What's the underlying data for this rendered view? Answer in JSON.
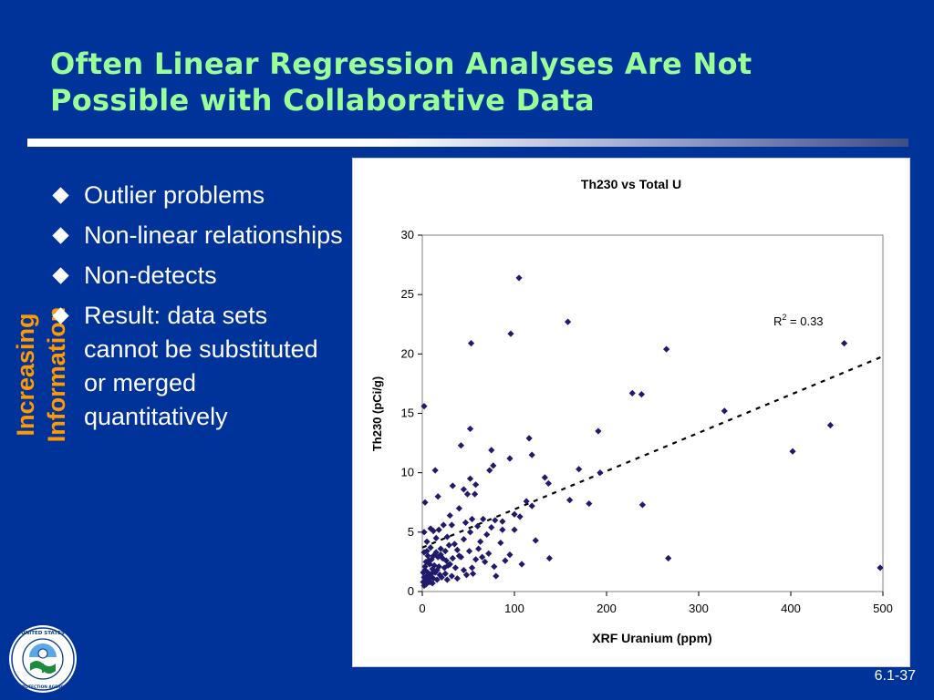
{
  "slide": {
    "title_line1": "Often Linear Regression Analyses Are Not",
    "title_line2": "Possible with Collaborative Data",
    "side_label": "Increasing Information",
    "bullets": [
      "Outlier problems",
      "Non-linear relationships",
      "Non-detects",
      "Result:  data sets cannot be substituted or merged quantitatively"
    ],
    "page_number": "6.1-37",
    "logo_text": "UNITED STATES ENVIRONMENTAL PROTECTION AGENCY"
  },
  "colors": {
    "background": "#003399",
    "title": "#99ff99",
    "side_label": "#ff9900",
    "marker": "#1f1a6b"
  },
  "chart_data": {
    "type": "scatter",
    "title": "Th230 vs Total U",
    "xlabel": "XRF Uranium (ppm)",
    "ylabel": "Th230 (pCi/g)",
    "xlim": [
      0,
      500
    ],
    "ylim": [
      0,
      30
    ],
    "xticks": [
      "0",
      "100",
      "200",
      "300",
      "400",
      "500"
    ],
    "yticks": [
      "0",
      "5",
      "10",
      "15",
      "20",
      "25",
      "30"
    ],
    "grid": false,
    "legend": "none",
    "annotation": {
      "label": "R",
      "superscript": "2",
      "text": " = 0.33"
    },
    "trendline": {
      "style": "dashed",
      "x": [
        0,
        500
      ],
      "y": [
        3.7,
        19.8
      ]
    },
    "points": [
      [
        105,
        26.4
      ],
      [
        158,
        22.7
      ],
      [
        96,
        21.7
      ],
      [
        53,
        20.9
      ],
      [
        265,
        20.4
      ],
      [
        458,
        20.9
      ],
      [
        228,
        16.7
      ],
      [
        238,
        16.6
      ],
      [
        2,
        15.6
      ],
      [
        328,
        15.2
      ],
      [
        52,
        13.7
      ],
      [
        443,
        14.0
      ],
      [
        191,
        13.5
      ],
      [
        116,
        12.9
      ],
      [
        42,
        12.3
      ],
      [
        75,
        11.9
      ],
      [
        119,
        11.5
      ],
      [
        402,
        11.8
      ],
      [
        95,
        11.2
      ],
      [
        77,
        10.6
      ],
      [
        73,
        10.2
      ],
      [
        170,
        10.3
      ],
      [
        193,
        10.0
      ],
      [
        14,
        10.2
      ],
      [
        133,
        9.6
      ],
      [
        52,
        9.5
      ],
      [
        58,
        9.0
      ],
      [
        45,
        8.6
      ],
      [
        33,
        8.9
      ],
      [
        137,
        9.1
      ],
      [
        17,
        8.0
      ],
      [
        49,
        8.2
      ],
      [
        57,
        8.2
      ],
      [
        160,
        7.7
      ],
      [
        181,
        7.4
      ],
      [
        239,
        7.3
      ],
      [
        3,
        7.5
      ],
      [
        113,
        7.6
      ],
      [
        106,
        6.3
      ],
      [
        119,
        7.2
      ],
      [
        40,
        7.0
      ],
      [
        100,
        6.5
      ],
      [
        30,
        6.4
      ],
      [
        66,
        6.1
      ],
      [
        54,
        6.1
      ],
      [
        79,
        6.0
      ],
      [
        87,
        5.9
      ],
      [
        9,
        5.3
      ],
      [
        2,
        5.0
      ],
      [
        12,
        5.1
      ],
      [
        18,
        5.2
      ],
      [
        23,
        5.6
      ],
      [
        32,
        5.6
      ],
      [
        47,
        5.8
      ],
      [
        75,
        5.4
      ],
      [
        87,
        5.2
      ],
      [
        52,
        5.0
      ],
      [
        15,
        4.5
      ],
      [
        27,
        4.6
      ],
      [
        45,
        4.4
      ],
      [
        63,
        4.2
      ],
      [
        5,
        4.2
      ],
      [
        9,
        3.7
      ],
      [
        20,
        3.6
      ],
      [
        29,
        3.9
      ],
      [
        38,
        3.5
      ],
      [
        51,
        3.4
      ],
      [
        72,
        3.2
      ],
      [
        95,
        3.1
      ],
      [
        2,
        3.3
      ],
      [
        6,
        3.0
      ],
      [
        12,
        3.0
      ],
      [
        17,
        2.9
      ],
      [
        22,
        2.8
      ],
      [
        26,
        2.6
      ],
      [
        33,
        2.8
      ],
      [
        42,
        2.9
      ],
      [
        58,
        2.7
      ],
      [
        68,
        2.5
      ],
      [
        138,
        2.8
      ],
      [
        267,
        2.8
      ],
      [
        497,
        2.0
      ],
      [
        4,
        2.5
      ],
      [
        8,
        2.3
      ],
      [
        13,
        2.2
      ],
      [
        18,
        2.1
      ],
      [
        24,
        2.0
      ],
      [
        30,
        2.3
      ],
      [
        36,
        2.0
      ],
      [
        45,
        1.8
      ],
      [
        54,
        2.0
      ],
      [
        78,
        2.1
      ],
      [
        108,
        2.3
      ],
      [
        3,
        1.8
      ],
      [
        6,
        1.6
      ],
      [
        10,
        1.5
      ],
      [
        14,
        1.6
      ],
      [
        19,
        1.4
      ],
      [
        25,
        1.5
      ],
      [
        32,
        1.3
      ],
      [
        48,
        1.4
      ],
      [
        80,
        1.3
      ],
      [
        2,
        1.2
      ],
      [
        4,
        1.1
      ],
      [
        7,
        1.0
      ],
      [
        9,
        1.3
      ],
      [
        12,
        1.1
      ],
      [
        16,
        1.0
      ],
      [
        21,
        1.2
      ],
      [
        27,
        1.0
      ],
      [
        38,
        1.1
      ],
      [
        1,
        0.8
      ],
      [
        3,
        0.7
      ],
      [
        5,
        0.9
      ],
      [
        8,
        0.8
      ],
      [
        11,
        0.7
      ],
      [
        2,
        0.5
      ],
      [
        4,
        0.6
      ],
      [
        6,
        1.4
      ],
      [
        1,
        1.6
      ],
      [
        3,
        2.1
      ],
      [
        7,
        2.6
      ],
      [
        5,
        3.4
      ],
      [
        10,
        2.7
      ],
      [
        15,
        3.3
      ],
      [
        20,
        3.1
      ],
      [
        25,
        3.4
      ],
      [
        35,
        4.0
      ],
      [
        40,
        3.0
      ],
      [
        61,
        3.6
      ],
      [
        85,
        4.1
      ],
      [
        90,
        2.6
      ],
      [
        65,
        2.9
      ],
      [
        28,
        2.2
      ],
      [
        16,
        1.8
      ],
      [
        11,
        1.9
      ],
      [
        60,
        5.5
      ],
      [
        70,
        4.8
      ],
      [
        100,
        5.2
      ],
      [
        123,
        4.3
      ],
      [
        55,
        1.5
      ]
    ]
  }
}
